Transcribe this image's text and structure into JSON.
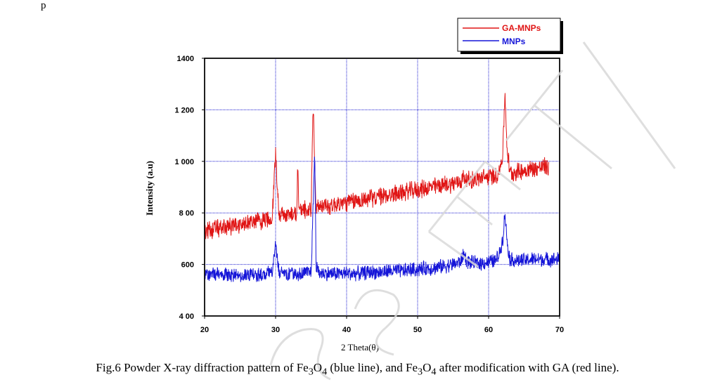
{
  "top_fragment": "p",
  "caption": {
    "text_1": "Fig.6 Powder X-ray diffraction pattern of Fe",
    "sub_1": "3",
    "text_2": "O",
    "sub_2": "4",
    "text_3": " (blue line), and Fe",
    "sub_3": "3",
    "text_4": "O",
    "sub_4": "4",
    "text_5": " after modification with GA (red line)."
  },
  "colors": {
    "red_series": "#e01515",
    "blue_series": "#1515d8",
    "grid": "#1a1ad0",
    "watermark": "#d9d9d9"
  },
  "chart_data": {
    "type": "line",
    "title": "",
    "xlabel": "2 Theta(θ)",
    "ylabel": "Intensity (a.u)",
    "xlim": [
      20,
      70
    ],
    "ylim": [
      400,
      1400
    ],
    "x_ticks": [
      20,
      30,
      40,
      50,
      60,
      70
    ],
    "y_ticks": [
      400,
      600,
      800,
      1000,
      1200,
      1400
    ],
    "y_tick_labels": [
      "4 00",
      "600",
      "8 00",
      "1 000",
      "1 200",
      "1400"
    ],
    "grid": true,
    "legend_position": "top-right-outside",
    "series": [
      {
        "name": "GA-MNPs",
        "color": "#e01515",
        "x": [
          20,
          21,
          22,
          23,
          24,
          25,
          26,
          27,
          28,
          29,
          29.5,
          30,
          30.5,
          31,
          32,
          33,
          33.1,
          33.3,
          34,
          35,
          35.3,
          35.5,
          35.7,
          36,
          37,
          38,
          39,
          40,
          41,
          42,
          43,
          44,
          45,
          46,
          47,
          48,
          49,
          50,
          51,
          52,
          53,
          54,
          55,
          56,
          56.5,
          57,
          58,
          59,
          60,
          61,
          61.5,
          62,
          62.3,
          62.6,
          63,
          64,
          65,
          66,
          67,
          68,
          68.5
        ],
        "y": [
          730,
          735,
          740,
          745,
          750,
          755,
          760,
          765,
          770,
          775,
          780,
          1030,
          790,
          790,
          795,
          800,
          1000,
          805,
          810,
          820,
          1230,
          1000,
          830,
          820,
          825,
          830,
          835,
          840,
          845,
          850,
          855,
          860,
          865,
          870,
          875,
          880,
          885,
          890,
          895,
          900,
          905,
          910,
          915,
          920,
          940,
          925,
          930,
          935,
          940,
          945,
          960,
          1030,
          1270,
          1050,
          955,
          960,
          965,
          970,
          975,
          980,
          970
        ],
        "noise_amplitude": 40
      },
      {
        "name": "MNPs",
        "color": "#1515d8",
        "x": [
          20,
          21,
          22,
          23,
          24,
          25,
          26,
          27,
          28,
          29,
          29.5,
          30,
          30.5,
          31,
          32,
          33,
          34,
          35,
          35.3,
          35.5,
          35.7,
          36,
          37,
          38,
          39,
          40,
          41,
          42,
          43,
          44,
          45,
          46,
          47,
          48,
          49,
          50,
          51,
          52,
          53,
          54,
          55,
          56,
          56.5,
          57,
          58,
          59,
          60,
          61,
          61.5,
          62,
          62.3,
          62.6,
          63,
          64,
          65,
          66,
          67,
          68,
          69,
          70
        ],
        "y": [
          560,
          560,
          560,
          560,
          560,
          560,
          560,
          560,
          560,
          565,
          570,
          680,
          575,
          570,
          565,
          565,
          565,
          570,
          830,
          1040,
          600,
          570,
          565,
          565,
          565,
          565,
          565,
          565,
          570,
          570,
          570,
          575,
          575,
          575,
          580,
          580,
          585,
          585,
          590,
          595,
          600,
          610,
          640,
          610,
          605,
          605,
          610,
          615,
          640,
          700,
          800,
          690,
          620,
          615,
          615,
          620,
          620,
          620,
          620,
          620
        ],
        "noise_amplitude": 32
      }
    ]
  }
}
